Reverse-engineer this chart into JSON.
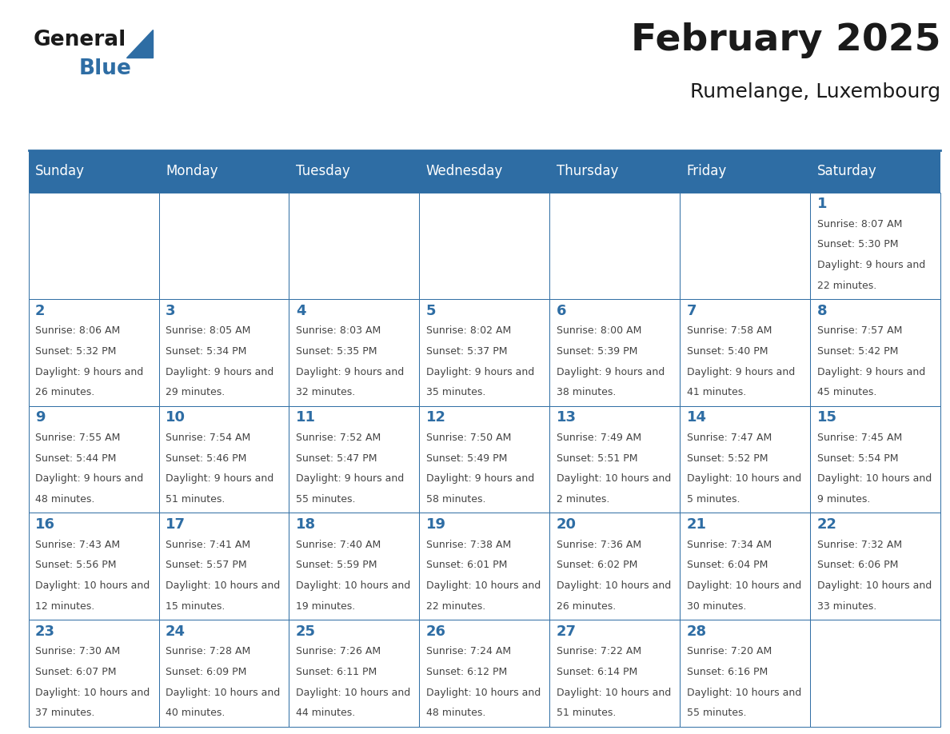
{
  "title": "February 2025",
  "subtitle": "Rumelange, Luxembourg",
  "days_of_week": [
    "Sunday",
    "Monday",
    "Tuesday",
    "Wednesday",
    "Thursday",
    "Friday",
    "Saturday"
  ],
  "header_bg": "#2E6DA4",
  "header_text": "#FFFFFF",
  "cell_bg": "#FFFFFF",
  "border_color": "#2E6DA4",
  "day_number_color": "#2E6DA4",
  "info_text_color": "#444444",
  "title_color": "#1a1a1a",
  "logo_general_color": "#1a1a1a",
  "logo_blue_color": "#2E6DA4",
  "calendar_data": [
    {
      "day": 1,
      "col": 6,
      "row": 0,
      "sunrise": "8:07 AM",
      "sunset": "5:30 PM",
      "daylight": "9 hours and 22 minutes"
    },
    {
      "day": 2,
      "col": 0,
      "row": 1,
      "sunrise": "8:06 AM",
      "sunset": "5:32 PM",
      "daylight": "9 hours and 26 minutes"
    },
    {
      "day": 3,
      "col": 1,
      "row": 1,
      "sunrise": "8:05 AM",
      "sunset": "5:34 PM",
      "daylight": "9 hours and 29 minutes"
    },
    {
      "day": 4,
      "col": 2,
      "row": 1,
      "sunrise": "8:03 AM",
      "sunset": "5:35 PM",
      "daylight": "9 hours and 32 minutes"
    },
    {
      "day": 5,
      "col": 3,
      "row": 1,
      "sunrise": "8:02 AM",
      "sunset": "5:37 PM",
      "daylight": "9 hours and 35 minutes"
    },
    {
      "day": 6,
      "col": 4,
      "row": 1,
      "sunrise": "8:00 AM",
      "sunset": "5:39 PM",
      "daylight": "9 hours and 38 minutes"
    },
    {
      "day": 7,
      "col": 5,
      "row": 1,
      "sunrise": "7:58 AM",
      "sunset": "5:40 PM",
      "daylight": "9 hours and 41 minutes"
    },
    {
      "day": 8,
      "col": 6,
      "row": 1,
      "sunrise": "7:57 AM",
      "sunset": "5:42 PM",
      "daylight": "9 hours and 45 minutes"
    },
    {
      "day": 9,
      "col": 0,
      "row": 2,
      "sunrise": "7:55 AM",
      "sunset": "5:44 PM",
      "daylight": "9 hours and 48 minutes"
    },
    {
      "day": 10,
      "col": 1,
      "row": 2,
      "sunrise": "7:54 AM",
      "sunset": "5:46 PM",
      "daylight": "9 hours and 51 minutes"
    },
    {
      "day": 11,
      "col": 2,
      "row": 2,
      "sunrise": "7:52 AM",
      "sunset": "5:47 PM",
      "daylight": "9 hours and 55 minutes"
    },
    {
      "day": 12,
      "col": 3,
      "row": 2,
      "sunrise": "7:50 AM",
      "sunset": "5:49 PM",
      "daylight": "9 hours and 58 minutes"
    },
    {
      "day": 13,
      "col": 4,
      "row": 2,
      "sunrise": "7:49 AM",
      "sunset": "5:51 PM",
      "daylight": "10 hours and 2 minutes"
    },
    {
      "day": 14,
      "col": 5,
      "row": 2,
      "sunrise": "7:47 AM",
      "sunset": "5:52 PM",
      "daylight": "10 hours and 5 minutes"
    },
    {
      "day": 15,
      "col": 6,
      "row": 2,
      "sunrise": "7:45 AM",
      "sunset": "5:54 PM",
      "daylight": "10 hours and 9 minutes"
    },
    {
      "day": 16,
      "col": 0,
      "row": 3,
      "sunrise": "7:43 AM",
      "sunset": "5:56 PM",
      "daylight": "10 hours and 12 minutes"
    },
    {
      "day": 17,
      "col": 1,
      "row": 3,
      "sunrise": "7:41 AM",
      "sunset": "5:57 PM",
      "daylight": "10 hours and 15 minutes"
    },
    {
      "day": 18,
      "col": 2,
      "row": 3,
      "sunrise": "7:40 AM",
      "sunset": "5:59 PM",
      "daylight": "10 hours and 19 minutes"
    },
    {
      "day": 19,
      "col": 3,
      "row": 3,
      "sunrise": "7:38 AM",
      "sunset": "6:01 PM",
      "daylight": "10 hours and 22 minutes"
    },
    {
      "day": 20,
      "col": 4,
      "row": 3,
      "sunrise": "7:36 AM",
      "sunset": "6:02 PM",
      "daylight": "10 hours and 26 minutes"
    },
    {
      "day": 21,
      "col": 5,
      "row": 3,
      "sunrise": "7:34 AM",
      "sunset": "6:04 PM",
      "daylight": "10 hours and 30 minutes"
    },
    {
      "day": 22,
      "col": 6,
      "row": 3,
      "sunrise": "7:32 AM",
      "sunset": "6:06 PM",
      "daylight": "10 hours and 33 minutes"
    },
    {
      "day": 23,
      "col": 0,
      "row": 4,
      "sunrise": "7:30 AM",
      "sunset": "6:07 PM",
      "daylight": "10 hours and 37 minutes"
    },
    {
      "day": 24,
      "col": 1,
      "row": 4,
      "sunrise": "7:28 AM",
      "sunset": "6:09 PM",
      "daylight": "10 hours and 40 minutes"
    },
    {
      "day": 25,
      "col": 2,
      "row": 4,
      "sunrise": "7:26 AM",
      "sunset": "6:11 PM",
      "daylight": "10 hours and 44 minutes"
    },
    {
      "day": 26,
      "col": 3,
      "row": 4,
      "sunrise": "7:24 AM",
      "sunset": "6:12 PM",
      "daylight": "10 hours and 48 minutes"
    },
    {
      "day": 27,
      "col": 4,
      "row": 4,
      "sunrise": "7:22 AM",
      "sunset": "6:14 PM",
      "daylight": "10 hours and 51 minutes"
    },
    {
      "day": 28,
      "col": 5,
      "row": 4,
      "sunrise": "7:20 AM",
      "sunset": "6:16 PM",
      "daylight": "10 hours and 55 minutes"
    }
  ]
}
